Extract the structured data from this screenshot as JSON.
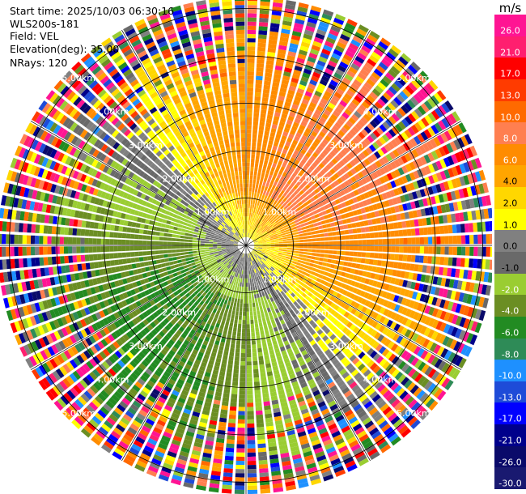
{
  "info": {
    "start_time": "Start time: 2025/10/03 06:30:16",
    "instrument": "WLS200s-181",
    "field": "Field: VEL",
    "elevation": "Elevation(deg): 35.00",
    "nrays": "NRays: 120"
  },
  "colorbar": {
    "unit": "m/s",
    "labels": [
      "26.0",
      "21.0",
      "17.0",
      "13.0",
      "10.0",
      "8.0",
      "6.0",
      "4.0",
      "2.0",
      "1.0",
      "0.0",
      "-1.0",
      "-2.0",
      "-4.0",
      "-6.0",
      "-8.0",
      "-10.0",
      "-13.0",
      "-17.0",
      "-21.0",
      "-26.0",
      "-30.0"
    ],
    "colors": [
      "#ff1493",
      "#ff1f6f",
      "#ff0000",
      "#ff3b00",
      "#ff6a00",
      "#ff7f50",
      "#ff8c00",
      "#ffa500",
      "#ffd700",
      "#ffff00",
      "#808080",
      "#696969",
      "#9acd32",
      "#6b8e23",
      "#228b22",
      "#2e8b57",
      "#1e90ff",
      "#1e4bd8",
      "#0000ff",
      "#00008b",
      "#0a0a6a",
      "#191970"
    ]
  },
  "chart_data": {
    "type": "heatmap",
    "projection": "polar PPI",
    "field": "VEL",
    "unit": "m/s",
    "elevation_deg": 35.0,
    "n_rays": 120,
    "range_rings": [
      {
        "label": "1.00km",
        "value_km": 1.0
      },
      {
        "label": "2.00km",
        "value_km": 2.0
      },
      {
        "label": "3.00km",
        "value_km": 3.0
      },
      {
        "label": "4.00km",
        "value_km": 4.0
      },
      {
        "label": "5.00km",
        "value_km": 5.0
      }
    ],
    "max_range_km": 5.25,
    "ring_label_bearings_deg": [
      45,
      135,
      225,
      315
    ],
    "velocity_pattern": {
      "north_to_east": "positive 4 to 10 m/s",
      "south_to_west": "negative -2 to -10 m/s",
      "near_radar": "approx 0 m/s",
      "outer_ranges": "noise, all values"
    },
    "colorscale": [
      26,
      21,
      17,
      13,
      10,
      8,
      6,
      4,
      2,
      1,
      0,
      -1,
      -2,
      -4,
      -6,
      -8,
      -10,
      -13,
      -17,
      -21,
      -26,
      -30
    ],
    "grid": true
  }
}
